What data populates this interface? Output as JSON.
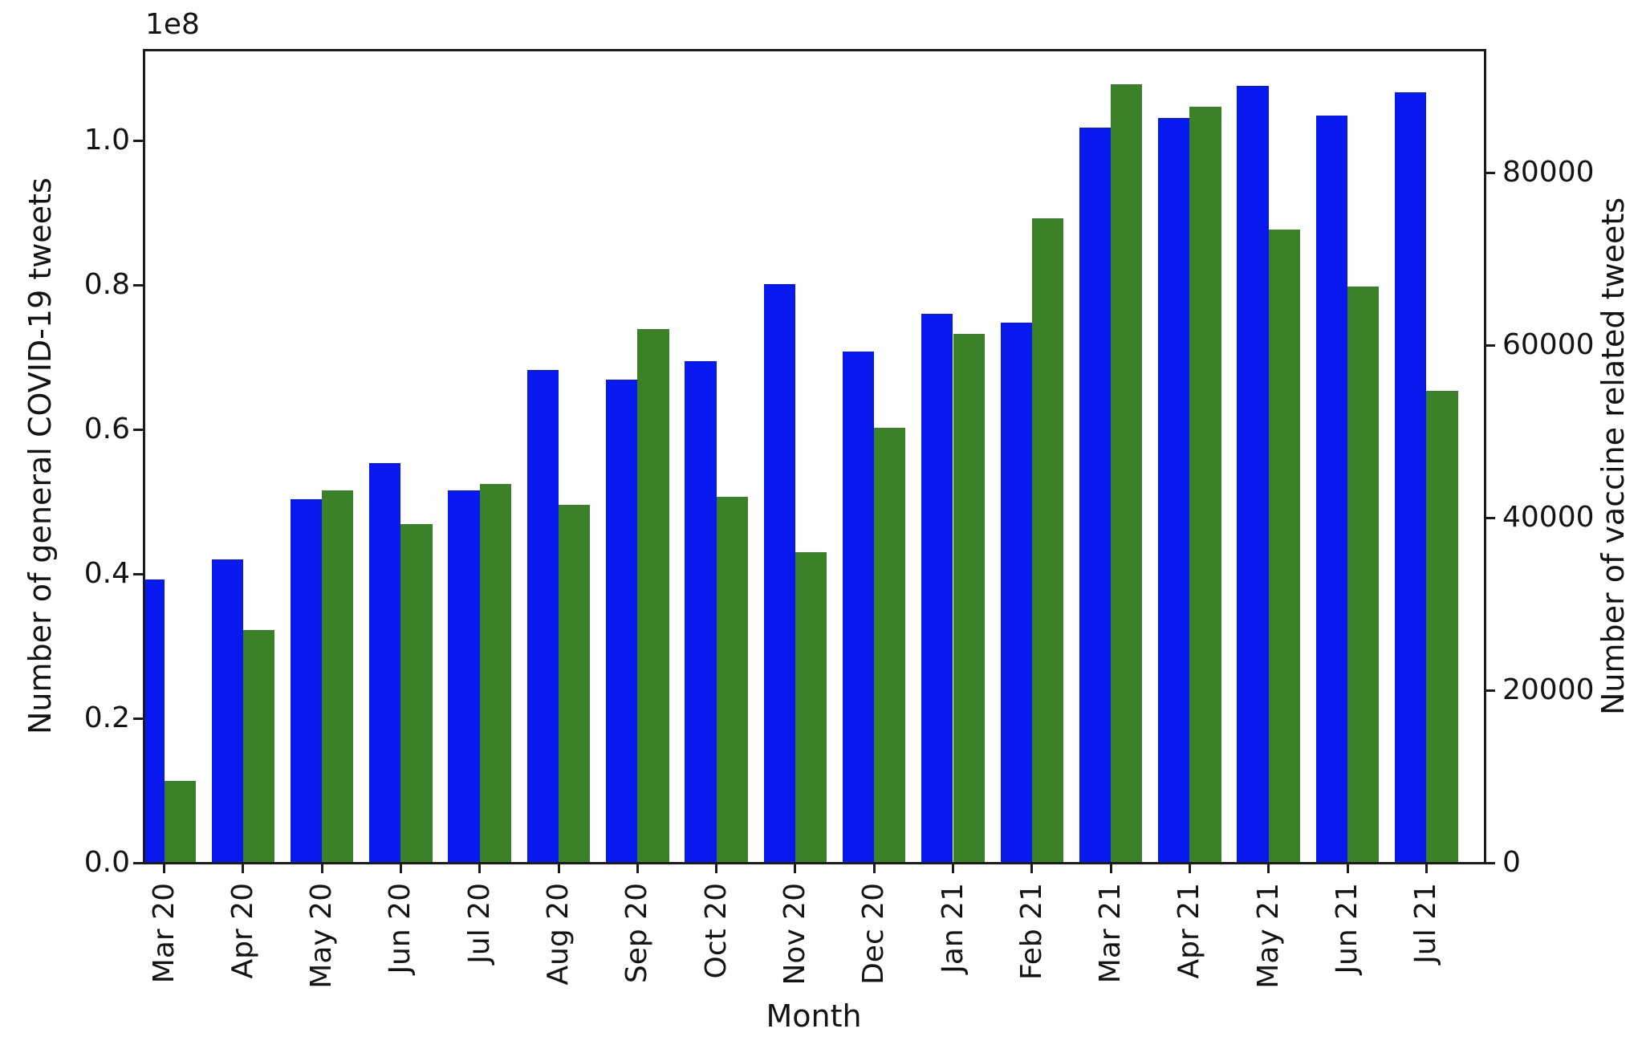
{
  "chart_data": {
    "type": "bar",
    "title": "",
    "xlabel": "Month",
    "categories": [
      "Mar 20",
      "Apr 20",
      "May 20",
      "Jun 20",
      "Jul 20",
      "Aug 20",
      "Sep 20",
      "Oct 20",
      "Nov 20",
      "Dec 20",
      "Jan 21",
      "Feb 21",
      "Mar 21",
      "Apr 21",
      "May 21",
      "Jun 21",
      "Jul 21"
    ],
    "series": [
      {
        "name": "General COVID-19 tweets",
        "axis": "left",
        "color": "#0819f0",
        "values": [
          39200000,
          42000000,
          50300000,
          55300000,
          51600000,
          68200000,
          66900000,
          69400000,
          80100000,
          70800000,
          76000000,
          74800000,
          101800000,
          103100000,
          107600000,
          103400000,
          106700000
        ]
      },
      {
        "name": "Vaccine related tweets",
        "axis": "right",
        "color": "#3a8127",
        "values": [
          9500,
          27000,
          43200,
          39300,
          43900,
          41500,
          61900,
          42400,
          36000,
          50400,
          61300,
          74700,
          90200,
          87600,
          73400,
          66800,
          54700
        ]
      }
    ],
    "left_axis": {
      "label": "Number of general COVID-19 tweets",
      "offset_text": "1e8",
      "tick_values": [
        0,
        20000000,
        40000000,
        60000000,
        80000000,
        100000000
      ],
      "tick_labels": [
        "0.0",
        "0.2",
        "0.4",
        "0.6",
        "0.8",
        "1.0"
      ],
      "ylim": [
        0,
        112560000
      ]
    },
    "right_axis": {
      "label": "Number of vaccine related tweets",
      "tick_values": [
        0,
        20000,
        40000,
        60000,
        80000
      ],
      "tick_labels": [
        "0",
        "20000",
        "40000",
        "60000",
        "80000"
      ],
      "ylim": [
        0,
        94233
      ]
    },
    "legend": "none",
    "grid": "off"
  }
}
